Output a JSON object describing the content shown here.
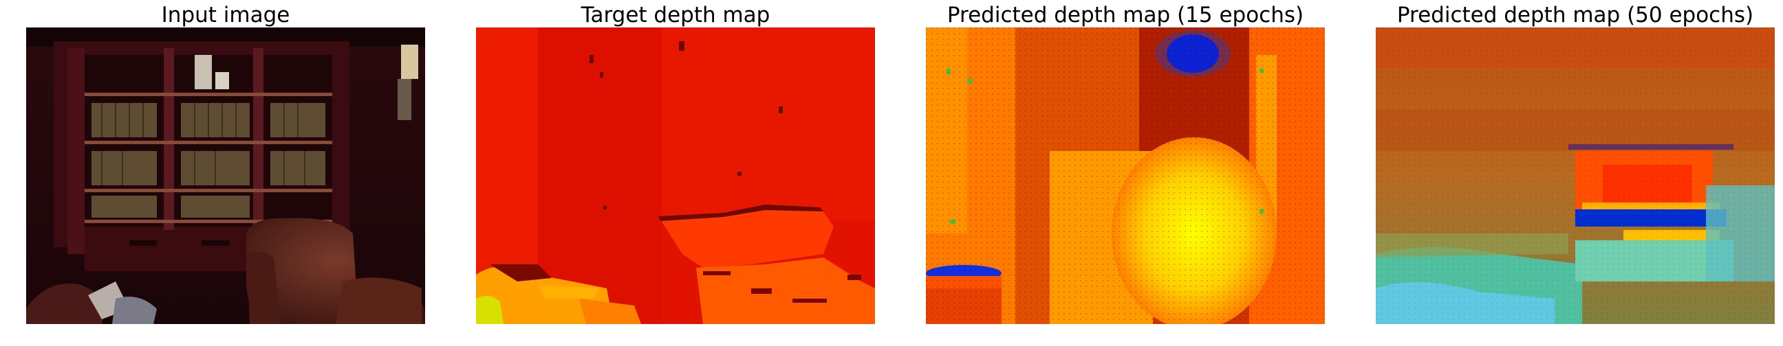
{
  "panels": [
    {
      "title": "Input image"
    },
    {
      "title": "Target depth map"
    },
    {
      "title": "Predicted depth map (15 epochs)"
    },
    {
      "title": "Predicted depth map (50 epochs)"
    }
  ]
}
